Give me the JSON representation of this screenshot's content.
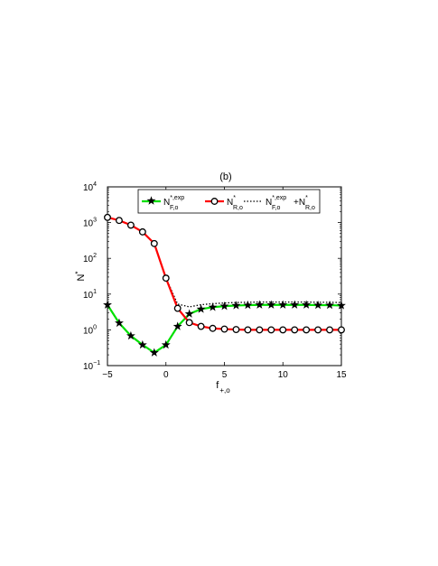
{
  "chart_data": {
    "type": "line",
    "title": "(b)",
    "xlabel": "f",
    "xlabel_sub": "+,o",
    "ylabel": "N",
    "ylabel_sup": "*",
    "y_scale": "log",
    "xlim": [
      -5,
      15
    ],
    "ylim": [
      0.1,
      10000
    ],
    "x_ticks": [
      -5,
      0,
      5,
      10,
      15
    ],
    "x_tick_labels": [
      "−5",
      "0",
      "5",
      "10",
      "15"
    ],
    "y_ticks": [
      0.1,
      1,
      10,
      100,
      1000,
      10000
    ],
    "y_tick_base": "10",
    "y_tick_exponents": [
      "−1",
      "0",
      "1",
      "2",
      "3",
      "4"
    ],
    "grid": false,
    "legend_position": "top",
    "x": [
      -5,
      -4,
      -3,
      -2,
      -1,
      0,
      1,
      2,
      3,
      4,
      5,
      6,
      7,
      8,
      9,
      10,
      11,
      12,
      13,
      14,
      15
    ],
    "series": [
      {
        "name_main": "N",
        "name_sub": "F,o",
        "name_sup": "*,exp",
        "color": "#00e000",
        "marker": "star",
        "values": [
          5.0,
          1.55,
          0.68,
          0.38,
          0.23,
          0.38,
          1.25,
          2.8,
          3.8,
          4.3,
          4.6,
          4.8,
          4.9,
          5.0,
          5.0,
          5.0,
          5.0,
          5.0,
          4.9,
          4.9,
          4.8
        ]
      },
      {
        "name_main": "N",
        "name_sub": "R,o",
        "name_sup": "*",
        "color": "#ff0000",
        "marker": "circle",
        "values": [
          1400,
          1150,
          850,
          550,
          260,
          28,
          4.0,
          1.6,
          1.25,
          1.1,
          1.05,
          1.02,
          1.0,
          1.0,
          1.0,
          1.0,
          1.0,
          1.0,
          1.0,
          1.0,
          1.0
        ]
      },
      {
        "name_main1": "N",
        "name_sub1": "F,o",
        "name_sup1": "*,exp",
        "name_plus": "+",
        "name_main2": "N",
        "name_sub2": "R,o",
        "name_sup2": "*",
        "color": "#000000",
        "marker": "none",
        "values": [
          1405,
          1151.6,
          850.7,
          550.4,
          260.2,
          28.4,
          5.25,
          4.4,
          5.05,
          5.4,
          5.65,
          5.82,
          5.9,
          6.0,
          6.0,
          6.0,
          6.0,
          6.0,
          5.9,
          5.9,
          5.8
        ]
      }
    ]
  }
}
